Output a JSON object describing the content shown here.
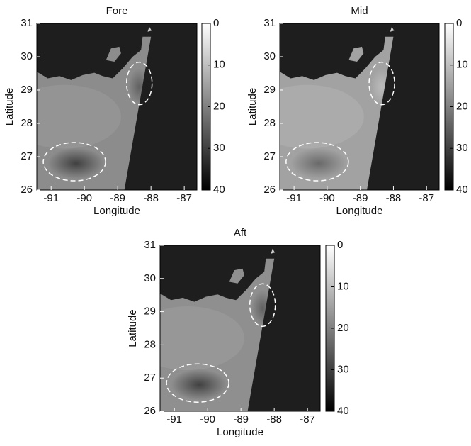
{
  "chart_data": [
    {
      "type": "image",
      "title": "Fore",
      "xlabel": "Longitude",
      "ylabel": "Latitude",
      "xlim": [
        -91.43,
        -86.62
      ],
      "xticks": [
        -91,
        -90,
        -89,
        -88,
        -87
      ],
      "ylim": [
        26,
        31
      ],
      "yticks": [
        26,
        27,
        28,
        29,
        30,
        31
      ],
      "colorbar": {
        "lim": [
          0,
          40
        ],
        "ticks": [
          0,
          10,
          20,
          30,
          40
        ],
        "colormap": "gray",
        "reversed": true
      }
    },
    {
      "type": "image",
      "title": "Mid",
      "xlabel": "Longitude",
      "ylabel": "Latitude",
      "xlim": [
        -91.43,
        -86.62
      ],
      "xticks": [
        -91,
        -90,
        -89,
        -88,
        -87
      ],
      "ylim": [
        26,
        31
      ],
      "yticks": [
        26,
        27,
        28,
        29,
        30,
        31
      ],
      "colorbar": {
        "lim": [
          0,
          40
        ],
        "ticks": [
          0,
          10,
          20,
          30,
          40
        ],
        "colormap": "gray",
        "reversed": true
      }
    },
    {
      "type": "image",
      "title": "Aft",
      "xlabel": "Longitude",
      "ylabel": "Latitude",
      "xlim": [
        -91.43,
        -86.62
      ],
      "xticks": [
        -91,
        -90,
        -89,
        -88,
        -87
      ],
      "ylim": [
        26,
        31
      ],
      "yticks": [
        26,
        27,
        28,
        29,
        30,
        31
      ],
      "colorbar": {
        "lim": [
          0,
          40
        ],
        "ticks": [
          0,
          10,
          20,
          30,
          40
        ],
        "colormap": "gray",
        "reversed": true
      }
    }
  ]
}
